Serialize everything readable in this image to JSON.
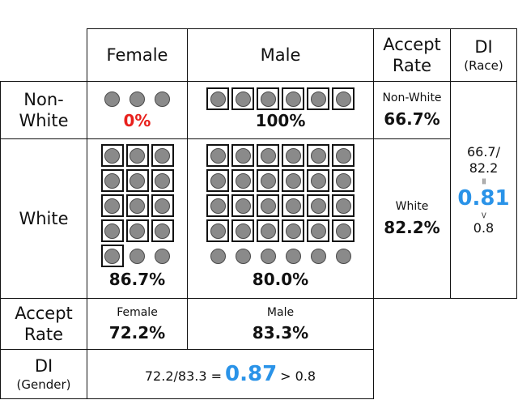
{
  "columns": {
    "female": "Female",
    "male": "Male",
    "accept_rate_line1": "Accept",
    "accept_rate_line2": "Rate",
    "di_line1": "DI",
    "di_line2": "(Race)"
  },
  "rows": {
    "non_white_line1": "Non-",
    "non_white_line2": "White",
    "white": "White",
    "accept_rate_line1": "Accept",
    "accept_rate_line2": "Rate",
    "di_line1": "DI",
    "di_line2": "(Gender)"
  },
  "cells": {
    "nonwhite_female": {
      "rate": "0%",
      "total": 3,
      "accepted": 0
    },
    "nonwhite_male": {
      "rate": "100%",
      "total": 6,
      "accepted": 6
    },
    "white_female": {
      "rate": "86.7%",
      "total": 15,
      "accepted": 13
    },
    "white_male": {
      "rate": "80.0%",
      "total": 30,
      "accepted": 24
    }
  },
  "race_rates": {
    "nonwhite_label": "Non-White",
    "nonwhite_value": "66.7%",
    "white_label": "White",
    "white_value": "82.2%"
  },
  "gender_rates": {
    "female_label": "Female",
    "female_value": "72.2%",
    "male_label": "Male",
    "male_value": "83.3%"
  },
  "di_race": {
    "ratio_line1": "66.7/",
    "ratio_line2": "82.2",
    "eq": "=",
    "value": "0.81",
    "gt": ">",
    "threshold": "0.8"
  },
  "di_gender": {
    "ratio": "72.2/83.3 =",
    "value": "0.87",
    "comparison": "> 0.8"
  },
  "colors": {
    "blue": "#2a93e8",
    "red": "#e8201c",
    "dot": "#8a8a8a"
  }
}
